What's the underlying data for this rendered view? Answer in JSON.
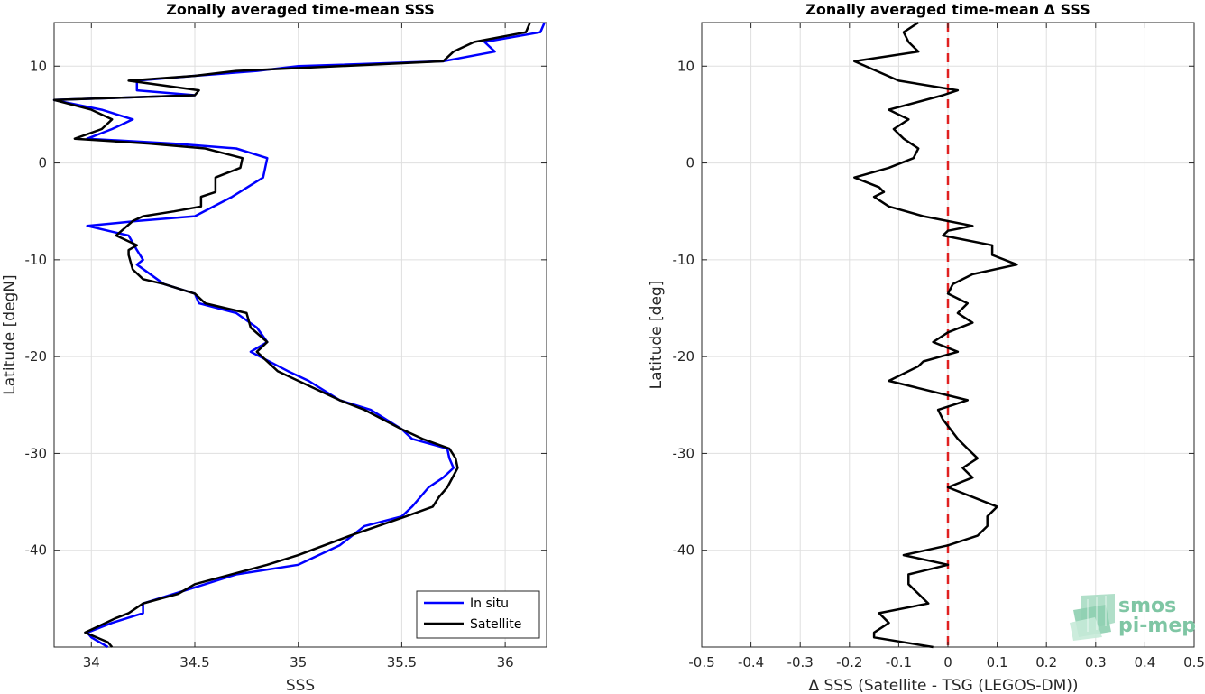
{
  "chart_data": [
    {
      "type": "line",
      "title": "Zonally averaged time-mean SSS",
      "xlabel": "SSS",
      "ylabel": "Latitude [degN]",
      "xlim": [
        33.82,
        36.2
      ],
      "ylim": [
        -50,
        14.5
      ],
      "xticks": [
        "34",
        "34.5",
        "35",
        "35.5",
        "36"
      ],
      "xtick_values": [
        34,
        34.5,
        35,
        35.5,
        36
      ],
      "yticks": [
        "10",
        "0",
        "-10",
        "-20",
        "-30",
        "-40"
      ],
      "ytick_values": [
        10,
        0,
        -10,
        -20,
        -30,
        -40
      ],
      "grid": true,
      "legend_position": "bottom-right",
      "series": [
        {
          "name": "In situ",
          "color": "#0000ff",
          "points": [
            [
              36.19,
              14.5
            ],
            [
              36.17,
              13.5
            ],
            [
              35.9,
              12.5
            ],
            [
              35.95,
              11.5
            ],
            [
              35.7,
              10.5
            ],
            [
              35.0,
              10.0
            ],
            [
              34.8,
              9.5
            ],
            [
              34.5,
              9.0
            ],
            [
              34.22,
              8.5
            ],
            [
              34.22,
              7.5
            ],
            [
              34.5,
              7.0
            ],
            [
              33.82,
              6.5
            ],
            [
              34.05,
              5.5
            ],
            [
              34.2,
              4.5
            ],
            [
              34.1,
              3.5
            ],
            [
              33.98,
              2.5
            ],
            [
              34.4,
              2.0
            ],
            [
              34.7,
              1.5
            ],
            [
              34.85,
              0.5
            ],
            [
              34.83,
              -1.5
            ],
            [
              34.68,
              -3.5
            ],
            [
              34.5,
              -5.5
            ],
            [
              34.22,
              -6.0
            ],
            [
              33.98,
              -6.5
            ],
            [
              34.18,
              -7.5
            ],
            [
              34.22,
              -9.0
            ],
            [
              34.25,
              -10.0
            ],
            [
              34.22,
              -10.5
            ],
            [
              34.35,
              -12.5
            ],
            [
              34.5,
              -13.5
            ],
            [
              34.52,
              -14.5
            ],
            [
              34.7,
              -15.5
            ],
            [
              34.8,
              -17.0
            ],
            [
              34.85,
              -18.5
            ],
            [
              34.77,
              -19.5
            ],
            [
              34.95,
              -21.5
            ],
            [
              35.05,
              -22.5
            ],
            [
              35.2,
              -24.5
            ],
            [
              35.35,
              -25.5
            ],
            [
              35.5,
              -27.5
            ],
            [
              35.55,
              -28.5
            ],
            [
              35.72,
              -29.5
            ],
            [
              35.73,
              -30.5
            ],
            [
              35.75,
              -31.5
            ],
            [
              35.7,
              -32.5
            ],
            [
              35.63,
              -33.5
            ],
            [
              35.55,
              -35.5
            ],
            [
              35.5,
              -36.5
            ],
            [
              35.32,
              -37.5
            ],
            [
              35.2,
              -39.5
            ],
            [
              35.0,
              -41.5
            ],
            [
              34.7,
              -42.5
            ],
            [
              34.55,
              -43.5
            ],
            [
              34.4,
              -44.5
            ],
            [
              34.25,
              -45.5
            ],
            [
              34.25,
              -46.5
            ],
            [
              34.1,
              -47.5
            ],
            [
              33.98,
              -48.5
            ],
            [
              34.0,
              -49.0
            ],
            [
              34.08,
              -50.0
            ]
          ]
        },
        {
          "name": "Satellite",
          "color": "#000000",
          "points": [
            [
              36.12,
              14.5
            ],
            [
              36.1,
              13.5
            ],
            [
              35.85,
              12.5
            ],
            [
              35.75,
              11.5
            ],
            [
              35.7,
              10.5
            ],
            [
              35.2,
              10.0
            ],
            [
              34.7,
              9.5
            ],
            [
              34.5,
              9.0
            ],
            [
              34.18,
              8.5
            ],
            [
              34.52,
              7.5
            ],
            [
              34.5,
              7.0
            ],
            [
              33.82,
              6.5
            ],
            [
              34.0,
              5.5
            ],
            [
              34.1,
              4.5
            ],
            [
              34.05,
              3.5
            ],
            [
              33.92,
              2.5
            ],
            [
              34.28,
              2.0
            ],
            [
              34.55,
              1.5
            ],
            [
              34.73,
              0.5
            ],
            [
              34.72,
              -0.5
            ],
            [
              34.6,
              -1.5
            ],
            [
              34.6,
              -3.0
            ],
            [
              34.53,
              -3.5
            ],
            [
              34.53,
              -4.5
            ],
            [
              34.4,
              -5.0
            ],
            [
              34.25,
              -5.5
            ],
            [
              34.2,
              -6.0
            ],
            [
              34.12,
              -7.5
            ],
            [
              34.22,
              -8.5
            ],
            [
              34.18,
              -9.0
            ],
            [
              34.18,
              -9.5
            ],
            [
              34.2,
              -11.0
            ],
            [
              34.25,
              -12.0
            ],
            [
              34.35,
              -12.5
            ],
            [
              34.5,
              -13.5
            ],
            [
              34.55,
              -14.5
            ],
            [
              34.75,
              -15.5
            ],
            [
              34.77,
              -17.0
            ],
            [
              34.85,
              -18.5
            ],
            [
              34.8,
              -19.5
            ],
            [
              34.9,
              -21.5
            ],
            [
              35.0,
              -22.5
            ],
            [
              35.2,
              -24.5
            ],
            [
              35.32,
              -25.5
            ],
            [
              35.5,
              -27.5
            ],
            [
              35.6,
              -28.5
            ],
            [
              35.73,
              -29.5
            ],
            [
              35.76,
              -30.5
            ],
            [
              35.77,
              -31.5
            ],
            [
              35.72,
              -33.5
            ],
            [
              35.68,
              -34.5
            ],
            [
              35.65,
              -35.5
            ],
            [
              35.52,
              -36.5
            ],
            [
              35.25,
              -38.5
            ],
            [
              35.0,
              -40.5
            ],
            [
              34.85,
              -41.5
            ],
            [
              34.5,
              -43.5
            ],
            [
              34.42,
              -44.5
            ],
            [
              34.25,
              -45.5
            ],
            [
              34.18,
              -46.5
            ],
            [
              34.12,
              -47.0
            ],
            [
              34.02,
              -48.0
            ],
            [
              33.97,
              -48.5
            ],
            [
              34.08,
              -49.5
            ],
            [
              34.1,
              -50.0
            ]
          ]
        }
      ]
    },
    {
      "type": "line",
      "title": "Zonally averaged time-mean Δ SSS",
      "xlabel": "Δ SSS (Satellite - TSG (LEGOS-DM))",
      "ylabel": "Latitude [deg]",
      "xlim": [
        -0.5,
        0.5
      ],
      "ylim": [
        -50,
        14.5
      ],
      "xticks": [
        "-0.5",
        "-0.4",
        "-0.3",
        "-0.2",
        "-0.1",
        "0",
        "0.1",
        "0.2",
        "0.3",
        "0.4",
        "0.5"
      ],
      "xtick_values": [
        -0.5,
        -0.4,
        -0.3,
        -0.2,
        -0.1,
        0,
        0.1,
        0.2,
        0.3,
        0.4,
        0.5
      ],
      "yticks": [
        "10",
        "0",
        "-10",
        "-20",
        "-30",
        "-40"
      ],
      "ytick_values": [
        10,
        0,
        -10,
        -20,
        -30,
        -40
      ],
      "grid": true,
      "zero_line_color": "#e02020",
      "series": [
        {
          "color": "#000000",
          "points": [
            [
              -0.06,
              14.5
            ],
            [
              -0.09,
              13.5
            ],
            [
              -0.08,
              12.5
            ],
            [
              -0.06,
              11.5
            ],
            [
              -0.19,
              10.5
            ],
            [
              -0.1,
              8.5
            ],
            [
              0.02,
              7.5
            ],
            [
              -0.01,
              7.0
            ],
            [
              -0.12,
              5.5
            ],
            [
              -0.08,
              4.5
            ],
            [
              -0.11,
              3.5
            ],
            [
              -0.09,
              2.5
            ],
            [
              -0.06,
              1.5
            ],
            [
              -0.07,
              0.5
            ],
            [
              -0.12,
              -0.5
            ],
            [
              -0.19,
              -1.5
            ],
            [
              -0.14,
              -2.5
            ],
            [
              -0.13,
              -3.0
            ],
            [
              -0.15,
              -3.5
            ],
            [
              -0.12,
              -4.5
            ],
            [
              -0.05,
              -5.5
            ],
            [
              0.05,
              -6.5
            ],
            [
              0.0,
              -7.0
            ],
            [
              -0.01,
              -7.5
            ],
            [
              0.09,
              -8.5
            ],
            [
              0.09,
              -9.5
            ],
            [
              0.14,
              -10.5
            ],
            [
              0.05,
              -11.5
            ],
            [
              0.01,
              -12.5
            ],
            [
              0.0,
              -13.5
            ],
            [
              0.04,
              -14.5
            ],
            [
              0.02,
              -15.5
            ],
            [
              0.05,
              -16.5
            ],
            [
              0.0,
              -17.5
            ],
            [
              -0.03,
              -18.5
            ],
            [
              0.02,
              -19.5
            ],
            [
              -0.05,
              -20.5
            ],
            [
              -0.06,
              -21.0
            ],
            [
              -0.12,
              -22.5
            ],
            [
              0.04,
              -24.5
            ],
            [
              -0.02,
              -25.5
            ],
            [
              -0.01,
              -26.5
            ],
            [
              0.02,
              -28.5
            ],
            [
              0.04,
              -29.5
            ],
            [
              0.06,
              -30.5
            ],
            [
              0.03,
              -31.5
            ],
            [
              0.05,
              -32.5
            ],
            [
              0.0,
              -33.5
            ],
            [
              0.05,
              -34.5
            ],
            [
              0.1,
              -35.5
            ],
            [
              0.08,
              -36.5
            ],
            [
              0.08,
              -37.5
            ],
            [
              0.06,
              -38.5
            ],
            [
              0.0,
              -39.5
            ],
            [
              -0.09,
              -40.5
            ],
            [
              0.0,
              -41.5
            ],
            [
              -0.08,
              -42.5
            ],
            [
              -0.08,
              -43.5
            ],
            [
              -0.04,
              -45.5
            ],
            [
              -0.14,
              -46.5
            ],
            [
              -0.12,
              -47.5
            ],
            [
              -0.15,
              -48.5
            ],
            [
              -0.15,
              -49.0
            ],
            [
              -0.03,
              -50.0
            ]
          ]
        }
      ]
    }
  ],
  "logo": {
    "line1": "smos",
    "line2": "pi-mep",
    "color": "#7fc6a4"
  }
}
